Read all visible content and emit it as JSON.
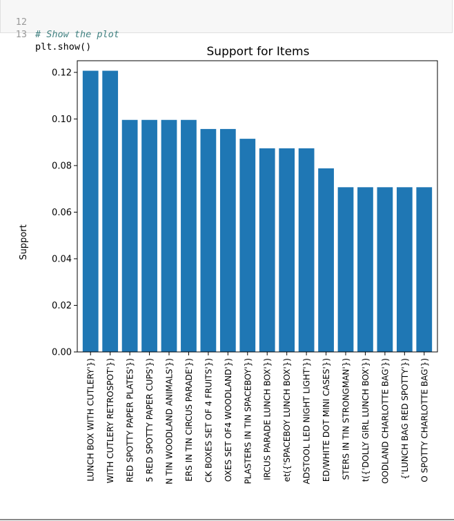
{
  "code": {
    "lines": [
      {
        "number": "12",
        "text": "# Show the plot",
        "kind": "comment"
      },
      {
        "number": "13",
        "text": "plt.show()",
        "kind": "code"
      }
    ]
  },
  "chart_data": {
    "type": "bar",
    "title": "Support for Items",
    "xlabel": "",
    "ylabel": "Support",
    "ylim": [
      0,
      0.125
    ],
    "yticks": [
      "0.00",
      "0.02",
      "0.04",
      "0.06",
      "0.08",
      "0.10",
      "0.12"
    ],
    "color": "#1f77b4",
    "grid": false,
    "categories": [
      "LUNCH BOX WITH CUTLERY'})",
      "WITH CUTLERY RETROSPOT'})",
      "RED SPOTTY PAPER PLATES'})",
      "5 RED SPOTTY PAPER CUPS'})",
      "N TIN WOODLAND ANIMALS'})",
      "ERS IN TIN CIRCUS PARADE'})",
      "CK BOXES SET OF 4 FRUITS'})",
      "OXES SET OF4 WOODLAND'})",
      "PLASTERS IN TIN SPACEBOY'})",
      "IRCUS PARADE LUNCH BOX'})",
      "et({'SPACEBOY LUNCH BOX'})",
      "ADSTOOL LED NIGHT LIGHT'})",
      "ED/WHITE DOT MINI CASES'})",
      "STERS IN TIN STRONGMAN'})",
      "t({'DOLLY GIRL LUNCH BOX'})",
      "OODLAND CHARLOTTE BAG'})",
      "{'LUNCH BAG RED SPOTTY'})",
      "O SPOTTY CHARLOTTE BAG'})"
    ],
    "values": [
      0.1207,
      0.1207,
      0.0996,
      0.0996,
      0.0996,
      0.0996,
      0.0957,
      0.0957,
      0.0915,
      0.0874,
      0.0874,
      0.0874,
      0.0788,
      0.0707,
      0.0707,
      0.0707,
      0.0707,
      0.0707
    ]
  }
}
